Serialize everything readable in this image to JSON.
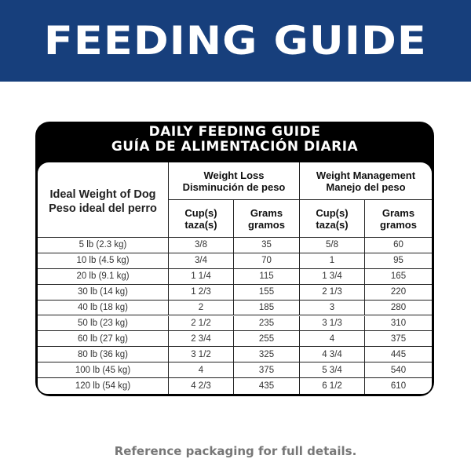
{
  "banner": {
    "title": "FEEDING GUIDE",
    "color": "#173f7c"
  },
  "table": {
    "title_en": "DAILY FEEDING GUIDE",
    "title_es": "GUÍA DE ALIMENTACIÓN DIARIA",
    "col_weight": [
      "Ideal Weight of Dog",
      "Peso ideal del perro"
    ],
    "group_loss": [
      "Weight Loss",
      "Disminución de peso"
    ],
    "group_mgmt": [
      "Weight Management",
      "Manejo del peso"
    ],
    "sub_cups": [
      "Cup(s)",
      "taza(s)"
    ],
    "sub_grams": [
      "Grams",
      "gramos"
    ],
    "rows": [
      [
        "5 lb (2.3 kg)",
        "3/8",
        "35",
        "5/8",
        "60"
      ],
      [
        "10 lb (4.5 kg)",
        "3/4",
        "70",
        "1",
        "95"
      ],
      [
        "20 lb (9.1 kg)",
        "1 1/4",
        "115",
        "1 3/4",
        "165"
      ],
      [
        "30 lb (14 kg)",
        "1 2/3",
        "155",
        "2 1/3",
        "220"
      ],
      [
        "40 lb (18 kg)",
        "2",
        "185",
        "3",
        "280"
      ],
      [
        "50 lb (23 kg)",
        "2 1/2",
        "235",
        "3 1/3",
        "310"
      ],
      [
        "60 lb (27 kg)",
        "2 3/4",
        "255",
        "4",
        "375"
      ],
      [
        "80 lb (36 kg)",
        "3 1/2",
        "325",
        "4 3/4",
        "445"
      ],
      [
        "100 lb (45 kg)",
        "4",
        "375",
        "5 3/4",
        "540"
      ],
      [
        "120 lb (54 kg)",
        "4 2/3",
        "435",
        "6 1/2",
        "610"
      ]
    ]
  },
  "footer": "Reference packaging for full details."
}
